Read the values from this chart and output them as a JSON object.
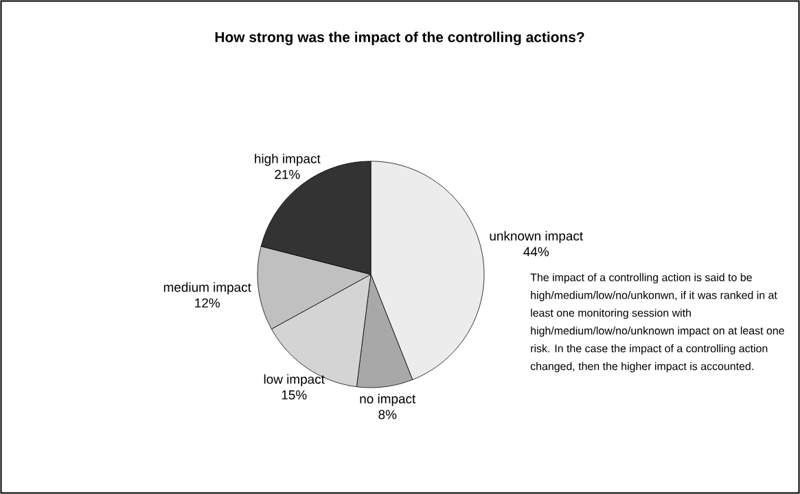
{
  "chart_data": {
    "type": "pie",
    "title": "How strong was the impact of the controlling actions?",
    "categories": [
      "unknown impact",
      "no impact",
      "low impact",
      "medium impact",
      "high impact"
    ],
    "values": [
      44,
      8,
      15,
      12,
      21
    ],
    "value_labels": [
      "44%",
      "8%",
      "15%",
      "12%",
      "21%"
    ],
    "colors": [
      "#ececec",
      "#a8a8a8",
      "#d4d4d4",
      "#c0c0c0",
      "#333333"
    ],
    "annotations": [
      "The impact of a controlling action is said to be high/medium/low/no/unkonwn, if it was ranked in at least one monitoring session with high/medium/low/no/unknown impact on at least one risk. In the case the impact of a controlling action changed, then the higher impact is accounted."
    ]
  }
}
